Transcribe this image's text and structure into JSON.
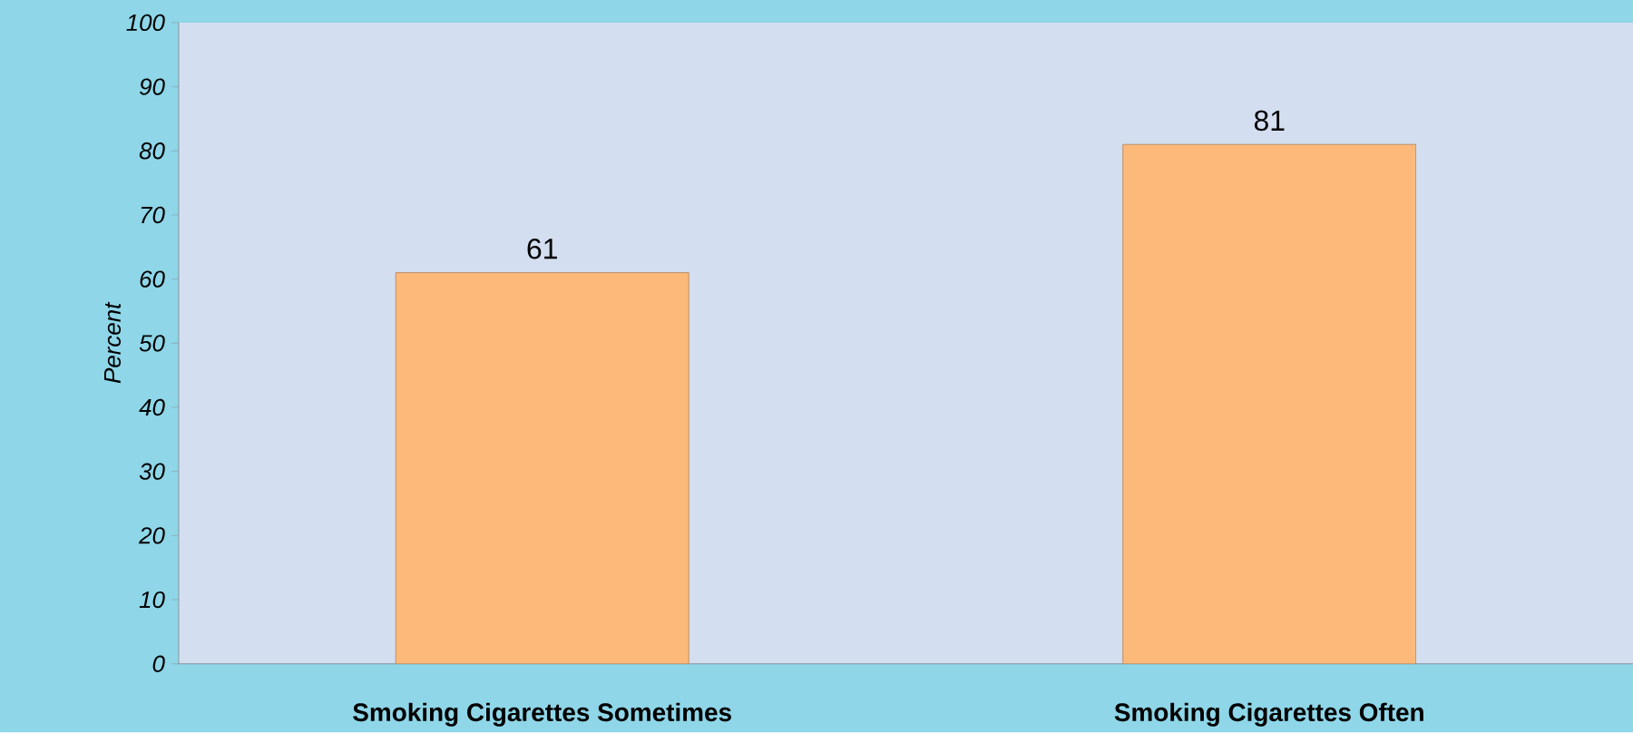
{
  "chart_data": {
    "type": "bar",
    "ylabel": "Percent",
    "categories": [
      "Smoking Cigarettes Sometimes",
      "Smoking Cigarettes Often"
    ],
    "values": [
      61,
      81
    ],
    "color": "#fdb97a",
    "ylim": [
      0,
      100
    ],
    "yticks": [
      0,
      10,
      20,
      30,
      40,
      50,
      60,
      70,
      80,
      90,
      100
    ],
    "data_labels": true
  }
}
